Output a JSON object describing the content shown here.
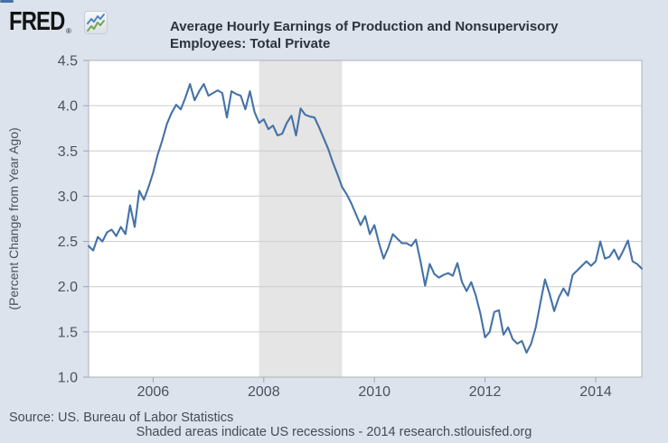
{
  "header": {
    "logo_text": "FRED",
    "logo_registered": "®",
    "icons": {
      "logo_icon": "sparkline-chart-icon",
      "legend_marker": "line-series-marker"
    },
    "legend_label": "Average Hourly Earnings of Production and Nonsupervisory Employees: Total Private"
  },
  "footer": {
    "source": "Source: US. Bureau of Labor Statistics",
    "note": "Shaded areas indicate US recessions - 2014 research.stlouisfed.org"
  },
  "colors": {
    "page_bg": "#dde3ec",
    "plot_bg": "#ffffff",
    "line": "#4572a7",
    "recession_band": "#e5e5e5",
    "gridline": "#cccccc",
    "plot_border": "#abb1b9",
    "tick": "#9aa6b4",
    "axis_text": "#4a5260",
    "logo_icon_blue": "#4e86c0",
    "logo_icon_green": "#72a74f"
  },
  "chart_data": {
    "type": "line",
    "title": "Average Hourly Earnings of Production and Nonsupervisory Employees: Total Private",
    "xlabel": "",
    "ylabel": "(Percent Change from Year Ago)",
    "ylim": [
      1.0,
      4.5
    ],
    "y_ticks": [
      4.5,
      4.0,
      3.5,
      3.0,
      2.5,
      2.0,
      1.5,
      1.0
    ],
    "x_tick_labels": [
      "2006",
      "2008",
      "2010",
      "2012",
      "2014"
    ],
    "x_range": [
      "2004-11",
      "2014-11"
    ],
    "grid": true,
    "legend_position": "top-left",
    "recession_bands": [
      {
        "start": "2007-12",
        "end": "2009-06"
      }
    ],
    "series": [
      {
        "name": "Average Hourly Earnings of Production and Nonsupervisory Employees: Total Private",
        "x_start": "2004-11",
        "frequency": "monthly",
        "units": "percent change from year ago",
        "values": [
          2.45,
          2.4,
          2.55,
          2.5,
          2.6,
          2.63,
          2.56,
          2.66,
          2.58,
          2.9,
          2.66,
          3.06,
          2.96,
          3.1,
          3.26,
          3.46,
          3.62,
          3.8,
          3.92,
          4.01,
          3.96,
          4.09,
          4.24,
          4.06,
          4.16,
          4.24,
          4.11,
          4.14,
          4.17,
          4.14,
          3.87,
          4.16,
          4.13,
          4.11,
          3.96,
          4.16,
          3.93,
          3.81,
          3.85,
          3.74,
          3.78,
          3.67,
          3.69,
          3.81,
          3.89,
          3.67,
          3.97,
          3.9,
          3.88,
          3.87,
          3.76,
          3.64,
          3.52,
          3.37,
          3.24,
          3.1,
          3.02,
          2.92,
          2.8,
          2.68,
          2.78,
          2.58,
          2.68,
          2.48,
          2.31,
          2.43,
          2.58,
          2.53,
          2.48,
          2.48,
          2.45,
          2.52,
          2.28,
          2.01,
          2.25,
          2.14,
          2.1,
          2.13,
          2.15,
          2.12,
          2.26,
          2.05,
          1.95,
          2.05,
          1.9,
          1.7,
          1.44,
          1.5,
          1.72,
          1.74,
          1.47,
          1.55,
          1.42,
          1.37,
          1.4,
          1.27,
          1.37,
          1.55,
          1.82,
          2.08,
          1.92,
          1.73,
          1.88,
          1.98,
          1.9,
          2.13,
          2.18,
          2.23,
          2.28,
          2.23,
          2.28,
          2.5,
          2.31,
          2.33,
          2.41,
          2.3,
          2.4,
          2.51,
          2.28,
          2.25,
          2.2
        ]
      }
    ]
  }
}
